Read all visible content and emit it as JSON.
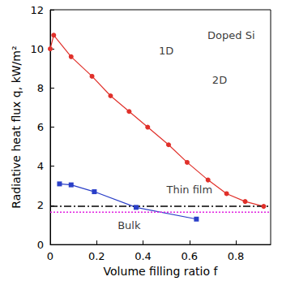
{
  "chart_data": {
    "type": "line",
    "x_label": "Volume filling ratio f",
    "y_label": "Radiative heat flux q, kW/m²",
    "xlim": [
      0,
      0.95
    ],
    "xticks": [
      0,
      0.2,
      0.4,
      0.6,
      0.8
    ],
    "ylim": [
      0,
      12
    ],
    "yticks": [
      0,
      2,
      4,
      6,
      8,
      10,
      12
    ],
    "grid": false,
    "series": [
      {
        "name": "1D",
        "color": "#e0302a",
        "marker": "circle",
        "line_style": "solid",
        "x": [
          0.0,
          0.015,
          0.09,
          0.18,
          0.26,
          0.34,
          0.42,
          0.51,
          0.59,
          0.68,
          0.76,
          0.84,
          0.92
        ],
        "values": [
          10.0,
          10.7,
          9.6,
          8.6,
          7.6,
          6.8,
          6.0,
          5.1,
          4.2,
          3.3,
          2.6,
          2.2,
          1.95
        ]
      },
      {
        "name": "2D",
        "color": "#2a3fc8",
        "marker": "square",
        "line_style": "solid",
        "x": [
          0.04,
          0.09,
          0.19,
          0.37,
          0.63
        ],
        "values": [
          3.1,
          3.05,
          2.7,
          1.9,
          1.3
        ]
      },
      {
        "name": "Thin film",
        "color": "#000000",
        "marker": "none",
        "line_style": "dashdot",
        "x": [
          0,
          0.95
        ],
        "values": [
          1.95,
          1.95
        ]
      },
      {
        "name": "Bulk",
        "color": "#e020e0",
        "marker": "none",
        "line_style": "dotted",
        "x": [
          0,
          0.95
        ],
        "values": [
          1.65,
          1.65
        ]
      }
    ],
    "annotations": [
      {
        "text": "Doped Si",
        "x": 0.78,
        "y": 10.7
      },
      {
        "text": "1D",
        "x": 0.5,
        "y": 9.9
      },
      {
        "text": "2D",
        "x": 0.73,
        "y": 8.4
      },
      {
        "text": "Thin film",
        "x": 0.6,
        "y": 2.8
      },
      {
        "text": "Bulk",
        "x": 0.34,
        "y": 1.0
      }
    ]
  }
}
